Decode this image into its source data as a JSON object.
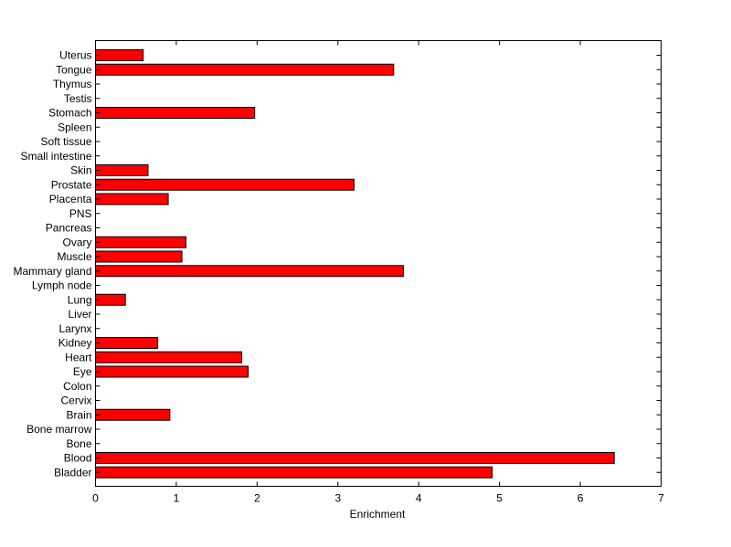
{
  "chart_data": {
    "type": "bar",
    "orientation": "horizontal",
    "categories": [
      "Uterus",
      "Tongue",
      "Thymus",
      "Testis",
      "Stomach",
      "Spleen",
      "Soft tissue",
      "Small intestine",
      "Skin",
      "Prostate",
      "Placenta",
      "PNS",
      "Pancreas",
      "Ovary",
      "Muscle",
      "Mammary gland",
      "Lymph node",
      "Lung",
      "Liver",
      "Larynx",
      "Kidney",
      "Heart",
      "Eye",
      "Colon",
      "Cervix",
      "Brain",
      "Bone marrow",
      "Bone",
      "Blood",
      "Bladder"
    ],
    "values": [
      0.59,
      3.69,
      0,
      0,
      1.97,
      0,
      0,
      0,
      0.65,
      3.2,
      0.9,
      0,
      0,
      1.12,
      1.07,
      3.81,
      0,
      0.37,
      0,
      0,
      0.77,
      1.81,
      1.89,
      0,
      0,
      0.92,
      0,
      0,
      6.42,
      4.91
    ],
    "xlabel": "Enrichment",
    "ylabel": "",
    "xlim": [
      0,
      7
    ],
    "xticks": [
      0,
      1,
      2,
      3,
      4,
      5,
      6,
      7
    ],
    "grid": false,
    "bar_color": "#ff0000",
    "edge_color": "#000000"
  }
}
